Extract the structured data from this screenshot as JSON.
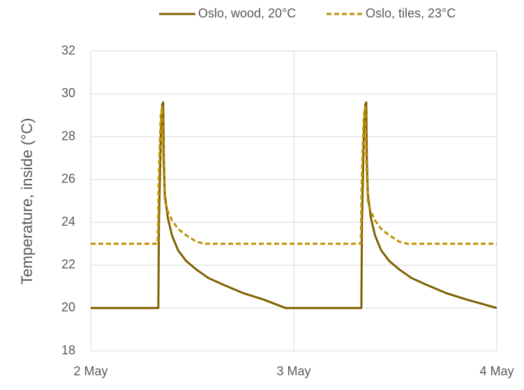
{
  "chart_data": {
    "type": "line",
    "y_label": "Temperature, inside (°C)",
    "xlim": [
      0,
      2
    ],
    "xticks": [
      {
        "value": 0,
        "label": "2 May"
      },
      {
        "value": 1,
        "label": "3 May"
      },
      {
        "value": 2,
        "label": "4 May"
      }
    ],
    "ylim": [
      18,
      32
    ],
    "yticks": [
      18,
      20,
      22,
      24,
      26,
      28,
      30,
      32
    ],
    "grid": true,
    "legend": "top",
    "series": [
      {
        "name": "Oslo, wood, 20°C",
        "color": "#7f6000",
        "line_style": "solid",
        "x": [
          0,
          0.333,
          0.336,
          0.345,
          0.352,
          0.357,
          0.36,
          0.365,
          0.38,
          0.4,
          0.43,
          0.47,
          0.52,
          0.58,
          0.65,
          0.75,
          0.85,
          0.96,
          1.333,
          1.336,
          1.345,
          1.352,
          1.357,
          1.36,
          1.365,
          1.38,
          1.4,
          1.43,
          1.47,
          1.52,
          1.58,
          1.65,
          1.75,
          1.85,
          2
        ],
        "values": [
          20,
          20,
          24,
          28,
          29.5,
          29.6,
          27,
          25.3,
          24.2,
          23.4,
          22.7,
          22.2,
          21.8,
          21.4,
          21.1,
          20.7,
          20.4,
          20,
          20,
          24,
          28,
          29.5,
          29.6,
          27,
          25.3,
          24.2,
          23.4,
          22.7,
          22.2,
          21.8,
          21.4,
          21.1,
          20.7,
          20.4,
          20
        ]
      },
      {
        "name": "Oslo, tiles, 23°C",
        "color": "#bf9000",
        "line_style": "dashed",
        "x": [
          0,
          0.33,
          0.335,
          0.345,
          0.352,
          0.357,
          0.365,
          0.38,
          0.4,
          0.43,
          0.47,
          0.52,
          0.56,
          1.33,
          1.335,
          1.345,
          1.352,
          1.357,
          1.365,
          1.38,
          1.4,
          1.43,
          1.47,
          1.52,
          1.56,
          2
        ],
        "values": [
          23,
          23,
          26,
          29,
          29.4,
          27,
          25,
          24.5,
          24.1,
          23.7,
          23.4,
          23.1,
          23,
          23,
          26,
          29,
          29.4,
          27,
          25,
          24.5,
          24.1,
          23.7,
          23.4,
          23.1,
          23,
          23
        ]
      }
    ]
  }
}
